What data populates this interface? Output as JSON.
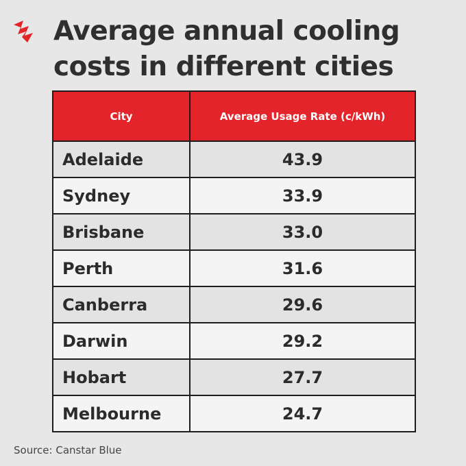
{
  "header": {
    "title_lines": [
      "Average annual cooling",
      "costs in different cities"
    ]
  },
  "table": {
    "columns": [
      "City",
      "Average Usage Rate (c/kWh)"
    ],
    "rows": [
      [
        "Adelaide",
        "43.9"
      ],
      [
        "Sydney",
        "33.9"
      ],
      [
        "Brisbane",
        "33.0"
      ],
      [
        "Perth",
        "31.6"
      ],
      [
        "Canberra",
        "29.6"
      ],
      [
        "Darwin",
        "29.2"
      ],
      [
        "Hobart",
        "27.7"
      ],
      [
        "Melbourne",
        "24.7"
      ]
    ]
  },
  "footer": {
    "source": "Source: Canstar Blue"
  }
}
